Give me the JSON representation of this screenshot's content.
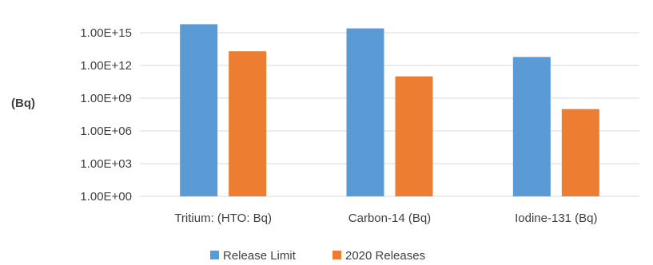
{
  "chart_data": {
    "type": "bar",
    "ylabel": "(Bq)",
    "yscale": "log",
    "ylim": [
      1,
      1e+17
    ],
    "yticks": [
      1,
      1000.0,
      1000000.0,
      1000000000.0,
      1000000000000.0,
      1000000000000000.0
    ],
    "ytick_labels": [
      "1.00E+00",
      "1.00E+03",
      "1.00E+06",
      "1.00E+09",
      "1.00E+12",
      "1.00E+15"
    ],
    "categories": [
      "Tritium: (HTO: Bq)",
      "Carbon-14 (Bq)",
      "Iodine-131 (Bq)"
    ],
    "series": [
      {
        "name": "Release Limit",
        "color": "#5b9bd5",
        "values": [
          6000000000000000.0,
          2500000000000000.0,
          6000000000000.0
        ]
      },
      {
        "name": "2020 Releases",
        "color": "#ed7d31",
        "values": [
          20000000000000.0,
          100000000000.0,
          100000000.0
        ]
      }
    ],
    "grid": true,
    "legend_position": "bottom"
  }
}
